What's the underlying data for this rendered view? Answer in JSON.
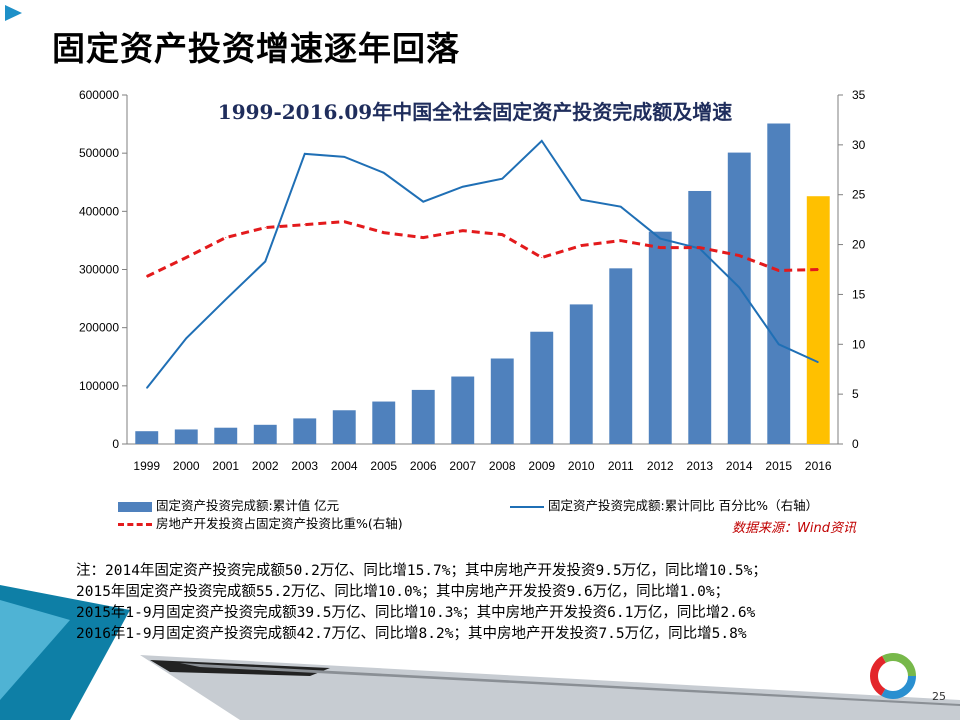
{
  "slide": {
    "title": "固定资产投资增速逐年回落",
    "page_number": "25",
    "source": "数据来源：Wind资讯",
    "notes": [
      "注：2014年固定资产投资完成额50.2万亿、同比增15.7%；其中房地产开发投资9.5万亿，同比增10.5%；",
      "    2015年固定资产投资完成额55.2万亿、同比增10.0%；其中房地产开发投资9.6万亿，同比增1.0%；",
      "    2015年1-9月固定资产投资完成额39.5万亿、同比增10.3%；其中房地产开发投资6.1万亿，同比增2.6%",
      "    2016年1-9月固定资产投资完成额42.7万亿、同比增8.2%；其中房地产开发投资7.5万亿，同比增5.8%"
    ],
    "colors": {
      "bar": "#4f81bd",
      "bar_highlight": "#ffc000",
      "growth_line": "#1f6fb5",
      "ratio_line": "#e31a1c",
      "source_text": "#c00000"
    }
  },
  "chart_data": {
    "type": "bar",
    "title": "1999-2016.09年中国全社会固定资产投资完成额及增速",
    "categories": [
      "1999",
      "2000",
      "2001",
      "2002",
      "2003",
      "2004",
      "2005",
      "2006",
      "2007",
      "2008",
      "2009",
      "2010",
      "2011",
      "2012",
      "2013",
      "2014",
      "2015",
      "2016"
    ],
    "y_left": {
      "lim": [
        0,
        600000
      ],
      "ticks": [
        "0",
        "100000",
        "200000",
        "300000",
        "400000",
        "500000",
        "600000"
      ]
    },
    "y_right": {
      "lim": [
        0,
        35
      ],
      "ticks": [
        "0",
        "5",
        "10",
        "15",
        "20",
        "25",
        "30",
        "35"
      ]
    },
    "series": [
      {
        "name": "固定资产投资完成额:累计值 亿元",
        "type": "bar",
        "axis": "left",
        "values": [
          22000,
          25000,
          28000,
          33000,
          44000,
          58000,
          73000,
          93000,
          116000,
          147000,
          193000,
          240000,
          302000,
          365000,
          435000,
          501000,
          551000,
          426000
        ],
        "highlight_last": true
      },
      {
        "name": "固定资产投资完成额:累计同比 百分比%（右轴）",
        "type": "line",
        "axis": "right",
        "style": "solid",
        "values": [
          5.6,
          10.6,
          14.5,
          18.3,
          29.1,
          28.8,
          27.2,
          24.3,
          25.8,
          26.6,
          30.4,
          24.5,
          23.8,
          20.6,
          19.6,
          15.7,
          10.0,
          8.2
        ]
      },
      {
        "name": "房地产开发投资占固定资产投资比重%(右轴)",
        "type": "line",
        "axis": "right",
        "style": "dashed",
        "values": [
          16.8,
          18.7,
          20.7,
          21.7,
          22.0,
          22.3,
          21.2,
          20.7,
          21.4,
          21.0,
          18.7,
          19.9,
          20.4,
          19.7,
          19.7,
          18.9,
          17.4,
          17.5
        ]
      }
    ],
    "legend_position": "bottom",
    "grid": false
  }
}
